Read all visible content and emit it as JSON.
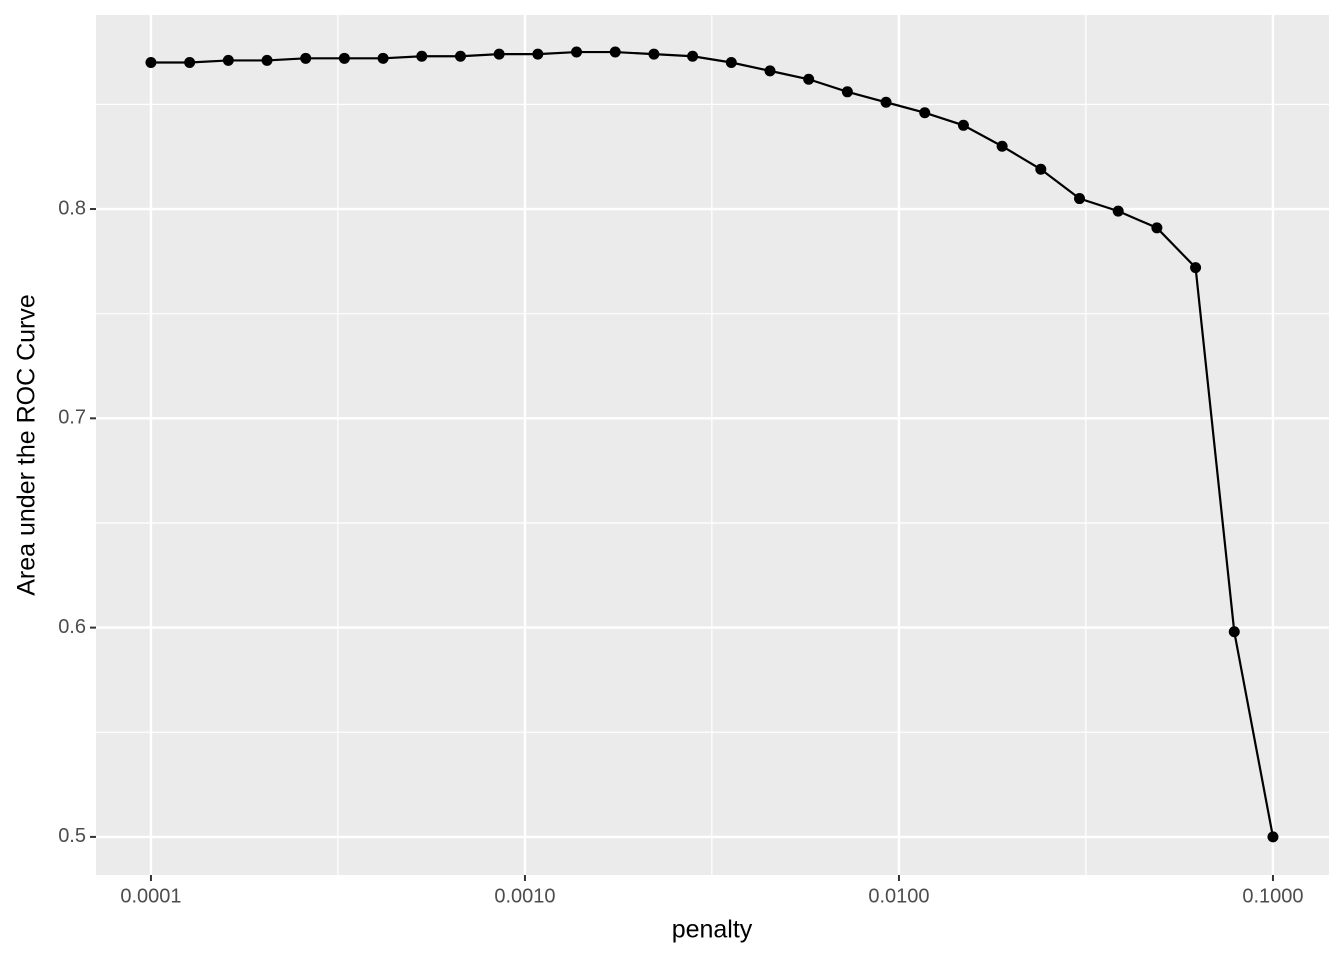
{
  "chart_data": {
    "type": "line",
    "x_label": "penalty",
    "y_label": "Area under the ROC Curve",
    "x_scale": "log",
    "grid": true,
    "color": "#000000",
    "x": [
      0.0001,
      0.0001269,
      0.00016103,
      0.00020434,
      0.00025929,
      0.00032903,
      0.00041753,
      0.00052983,
      0.00067234,
      0.00085317,
      0.0010826,
      0.0013738,
      0.0017433,
      0.0022122,
      0.0028072,
      0.0035622,
      0.0045204,
      0.0057362,
      0.007279,
      0.0092367,
      0.011721,
      0.014874,
      0.018874,
      0.02395,
      0.030392,
      0.038566,
      0.048939,
      0.062102,
      0.078805,
      0.1
    ],
    "values": [
      0.87,
      0.87,
      0.871,
      0.871,
      0.872,
      0.872,
      0.872,
      0.873,
      0.873,
      0.874,
      0.874,
      0.875,
      0.875,
      0.874,
      0.873,
      0.87,
      0.866,
      0.862,
      0.856,
      0.851,
      0.846,
      0.84,
      0.83,
      0.819,
      0.805,
      0.799,
      0.791,
      0.772,
      0.598,
      0.5
    ],
    "xlim": [
      7.13e-05,
      0.1412
    ],
    "ylim": [
      0.4818,
      0.8927
    ],
    "xticks": [
      {
        "value": 0.0001,
        "label": "0.0001"
      },
      {
        "value": 0.001,
        "label": "0.0010"
      },
      {
        "value": 0.01,
        "label": "0.0100"
      },
      {
        "value": 0.1,
        "label": "0.1000"
      }
    ],
    "yticks": [
      0.5,
      0.6,
      0.7,
      0.8
    ],
    "minor_xticks": [
      0.000316,
      0.00316,
      0.0316
    ],
    "minor_yticks": [
      0.55,
      0.65,
      0.75,
      0.85
    ]
  }
}
